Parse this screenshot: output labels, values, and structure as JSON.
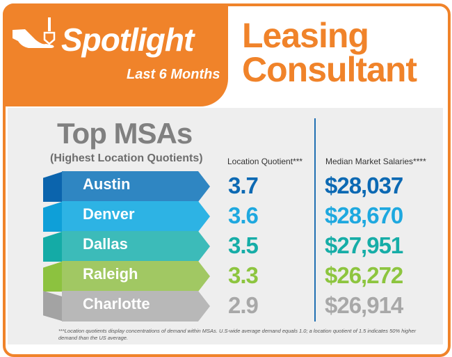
{
  "header": {
    "brand": "Spotlight",
    "period": "Last 6 Months",
    "title_line1": "Leasing",
    "title_line2": "Consultant",
    "brand_icon": "hand-holding-key-icon"
  },
  "section": {
    "title": "Top MSAs",
    "subtitle": "(Highest Location Quotients)",
    "col_lq": "Location Quotient***",
    "col_salary": "Median Market Salaries****"
  },
  "rows": [
    {
      "city": "Austin",
      "lq": "3.7",
      "salary": "$28,037",
      "band": "#2f86c2",
      "bevel": "#0b64ad",
      "text": "#0c69b3"
    },
    {
      "city": "Denver",
      "lq": "3.6",
      "salary": "$28,670",
      "band": "#2db3e4",
      "bevel": "#0e9fd8",
      "text": "#1ea8df"
    },
    {
      "city": "Dallas",
      "lq": "3.5",
      "salary": "$27,951",
      "band": "#3cbbb9",
      "bevel": "#14aba6",
      "text": "#16ada7"
    },
    {
      "city": "Raleigh",
      "lq": "3.3",
      "salary": "$26,272",
      "band": "#a1c863",
      "bevel": "#8cc23f",
      "text": "#8dc53f"
    },
    {
      "city": "Charlotte",
      "lq": "2.9",
      "salary": "$26,914",
      "band": "#b8b8b8",
      "bevel": "#a3a3a3",
      "text": "#a8a8a8"
    }
  ],
  "footnote": "***Location quotients display concentrations of demand within MSAs. U.S-wide average demand equals 1.0; a location quotient of 1.5 indicates 50% higher demand than the US average.",
  "colors": {
    "accent": "#f0832a",
    "divider": "#1f6fb2"
  }
}
